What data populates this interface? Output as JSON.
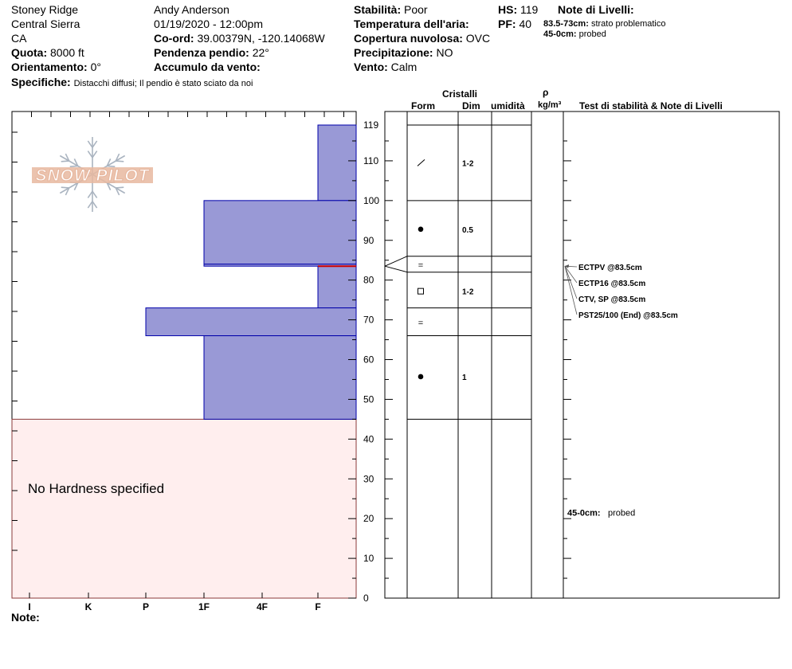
{
  "header": {
    "location": "Stoney Ridge",
    "range": "Central Sierra",
    "state": "CA",
    "elevation_label": "Quota:",
    "elevation_value": "8000 ft",
    "aspect_label": "Orientamento:",
    "aspect_value": "0°",
    "specifics_label": "Specifiche:",
    "specifics_value": "Distacchi diffusi;  Il pendio è stato sciato da noi",
    "observer": "Andy Anderson",
    "datetime": "01/19/2020 - 12:00pm",
    "coord_label": "Co-ord:",
    "coord_value": "39.00379N, -120.14068W",
    "slope_label": "Pendenza pendio:",
    "slope_value": "22°",
    "wind_loading_label": "Accumulo da vento:",
    "wind_loading_value": "",
    "stability_label": "Stabilità:",
    "stability_value": "Poor",
    "air_temp_label": "Temperatura dell'aria:",
    "air_temp_value": "",
    "sky_label": "Copertura nuvolosa:",
    "sky_value": "OVC",
    "precip_label": "Precipitazione:",
    "precip_value": "NO",
    "wind_label": "Vento:",
    "wind_value": "Calm",
    "hs_label": "HS:",
    "hs_value": "119",
    "pf_label": "PF:",
    "pf_value": "40",
    "layer_notes_title": "Note di Livelli:",
    "layer_notes": [
      {
        "range": "83.5-73cm:",
        "text": "strato problematico"
      },
      {
        "range": "45-0cm:",
        "text": "probed"
      }
    ]
  },
  "logo_text": "SNOW PILOT",
  "no_hardness_text": "No Hardness specified",
  "notes_label": "Note:",
  "columns": {
    "crystals": "Cristalli",
    "form": "Form",
    "size": "Dim",
    "moisture": "umidità",
    "density_symbol": "ρ",
    "density_unit": "kg/m³",
    "tests": "Test di stabilità & Note di Livelli"
  },
  "colors": {
    "layer_fill": "#9999d6",
    "layer_stroke": "#0000aa",
    "no_hardness_fill": "#ffeeee",
    "no_hardness_stroke": "#8b3a3a",
    "weak_layer": "#cc0000",
    "logo": "#e8b8a0"
  },
  "chart_data": {
    "type": "snow-profile",
    "ylim": [
      0,
      119
    ],
    "y_ticks": [
      0,
      10,
      20,
      30,
      40,
      50,
      60,
      70,
      80,
      90,
      100,
      110,
      119
    ],
    "hardness_scale": [
      "I",
      "K",
      "P",
      "1F",
      "4F",
      "F"
    ],
    "hardness_layers": [
      {
        "top": 119,
        "bottom": 100,
        "hardness": "F"
      },
      {
        "top": 100,
        "bottom": 84,
        "hardness": "1F"
      },
      {
        "top": 84,
        "bottom": 83.5,
        "hardness": "1F"
      },
      {
        "top": 83.5,
        "bottom": 73,
        "hardness": "F"
      },
      {
        "top": 73,
        "bottom": 66,
        "hardness": "P"
      },
      {
        "top": 66,
        "bottom": 45,
        "hardness": "1F"
      }
    ],
    "no_hardness_range": [
      45,
      0
    ],
    "weak_layer_depth": 83.5,
    "layer_boundaries": [
      119,
      100,
      86,
      82,
      73,
      66,
      45
    ],
    "crystals": [
      {
        "depth": 109.5,
        "form": "/",
        "size": "1-2"
      },
      {
        "depth": 92.8,
        "form": "●",
        "size": "0.5"
      },
      {
        "depth": 83.8,
        "form": "=",
        "size": ""
      },
      {
        "depth": 77.2,
        "form": "□",
        "size": "1-2"
      },
      {
        "depth": 69.3,
        "form": "=",
        "size": ""
      },
      {
        "depth": 55.7,
        "form": "●",
        "size": "1"
      }
    ],
    "stability_tests": [
      "ECTPV @83.5cm",
      "ECTP16 @83.5cm",
      "CTV, SP @83.5cm",
      "PST25/100 (End) @83.5cm"
    ],
    "bottom_note": {
      "range": "45-0cm:",
      "text": "probed",
      "depth": 21.5
    }
  }
}
